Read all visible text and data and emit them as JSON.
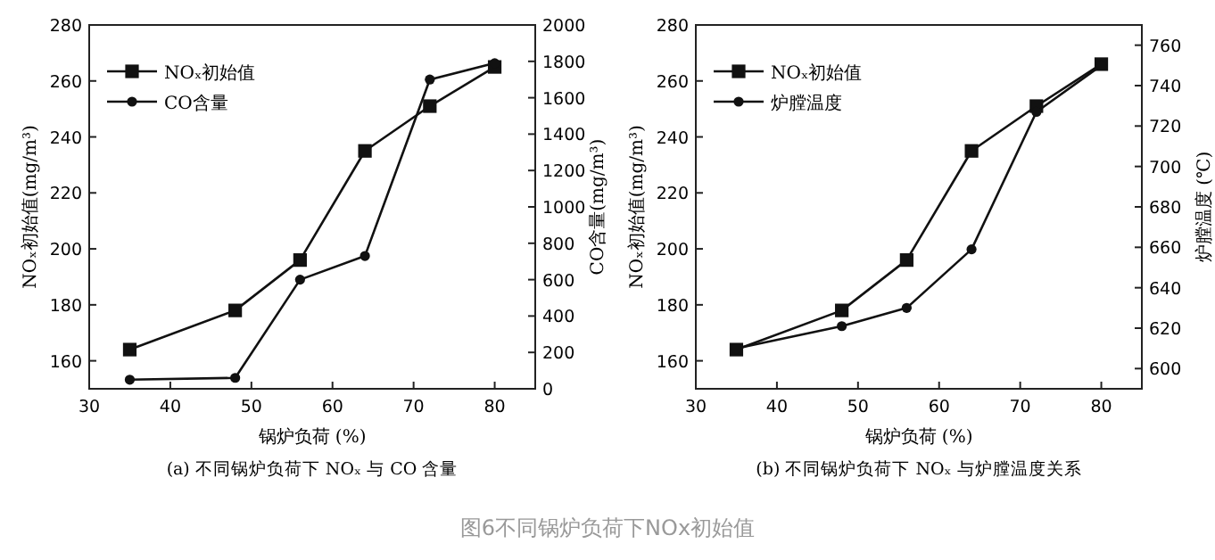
{
  "chart_data": [
    {
      "type": "line",
      "xlabel": "锅炉负荷 (%)",
      "ylabel": "NOₓ初始值(mg/m³)",
      "y2label": "CO含量(mg/m³)",
      "x": [
        35,
        48,
        56,
        64,
        72,
        80
      ],
      "xlim": [
        30,
        85
      ],
      "xticks": [
        30,
        40,
        50,
        60,
        70,
        80
      ],
      "ylim": [
        150,
        280
      ],
      "yticks": [
        160,
        180,
        200,
        220,
        240,
        260,
        280
      ],
      "y2lim": [
        0,
        2000
      ],
      "y2ticks": [
        0,
        200,
        400,
        600,
        800,
        1000,
        1200,
        1400,
        1600,
        1800,
        2000
      ],
      "grid": false,
      "legend": "top left",
      "line_style": "solid",
      "series": [
        {
          "name": "NOₓ初始值",
          "color": "#111111",
          "marker": "square",
          "values": [
            164,
            178,
            196,
            235,
            251,
            265
          ]
        },
        {
          "name": "CO含量",
          "color": "#111111",
          "marker": "circle",
          "axis": "y2",
          "values": [
            50,
            60,
            600,
            730,
            1700,
            1790
          ]
        }
      ],
      "annotations": [
        "(a) 不同锅炉负荷下 NOₓ 与 CO 含量",
        "图6不同锅炉负荷下NOx初始值"
      ]
    },
    {
      "type": "line",
      "xlabel": "锅炉负荷 (%)",
      "ylabel": "NOₓ初始值(mg/m³)",
      "y2label": "炉膛温度 (℃)",
      "x": [
        35,
        48,
        56,
        64,
        72,
        80
      ],
      "xlim": [
        30,
        85
      ],
      "xticks": [
        30,
        40,
        50,
        60,
        70,
        80
      ],
      "ylim": [
        150,
        280
      ],
      "yticks": [
        160,
        180,
        200,
        220,
        240,
        260,
        280
      ],
      "y2lim": [
        590,
        770
      ],
      "y2ticks": [
        600,
        620,
        640,
        660,
        680,
        700,
        720,
        740,
        760
      ],
      "grid": false,
      "legend": "top left",
      "line_style": "solid",
      "series": [
        {
          "name": "NOₓ初始值",
          "color": "#111111",
          "marker": "square",
          "values": [
            164,
            178,
            196,
            235,
            251,
            266
          ]
        },
        {
          "name": "炉膛温度",
          "color": "#111111",
          "marker": "circle",
          "axis": "y2",
          "values": [
            610,
            621,
            630,
            659,
            727,
            750
          ]
        }
      ],
      "annotations": [
        "(b) 不同锅炉负荷下 NOₓ 与炉膛温度关系"
      ]
    }
  ]
}
